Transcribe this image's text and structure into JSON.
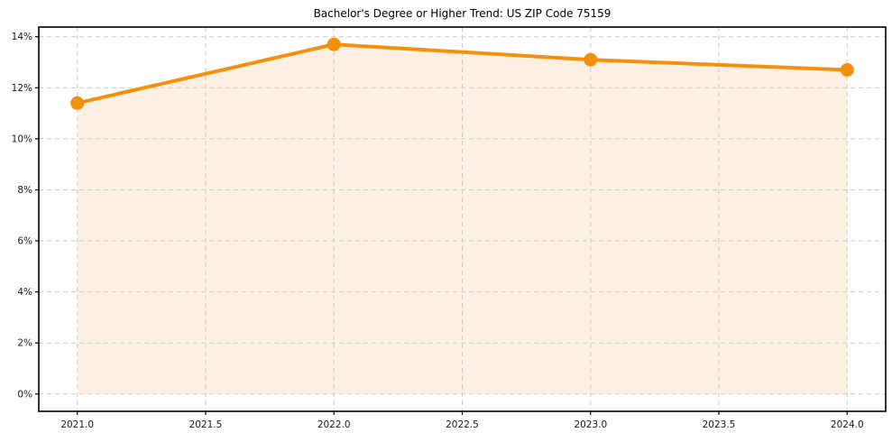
{
  "chart_data": {
    "type": "line",
    "title": "Bachelor's Degree or Higher Trend: US ZIP Code 75159",
    "x": [
      2021,
      2022,
      2023,
      2024
    ],
    "values": [
      11.4,
      13.7,
      13.1,
      12.7
    ],
    "unit": "%",
    "area_fill_to_zero": true,
    "x_ticks": [
      2021.0,
      2021.5,
      2022.0,
      2022.5,
      2023.0,
      2023.5,
      2024.0
    ],
    "x_tick_labels": [
      "2021.0",
      "2021.5",
      "2022.0",
      "2022.5",
      "2023.0",
      "2023.5",
      "2024.0"
    ],
    "y_ticks": [
      0,
      2,
      4,
      6,
      8,
      10,
      12,
      14
    ],
    "y_tick_labels": [
      "0%",
      "2%",
      "4%",
      "6%",
      "8%",
      "10%",
      "12%",
      "14%"
    ],
    "xlim": [
      2020.85,
      2024.15
    ],
    "ylim": [
      -0.68,
      14.38
    ],
    "xlabel": "",
    "ylabel": "",
    "grid": {
      "shown": true,
      "style": "dashed"
    },
    "legend_position": "none",
    "colors": {
      "line": "#f5900d",
      "marker": "#f5900d",
      "area_fill": "#fcf0e3",
      "grid": "#c9c9c9",
      "axis": "#000000",
      "tick_label": "#1a1a1a",
      "title": "#000000"
    }
  }
}
